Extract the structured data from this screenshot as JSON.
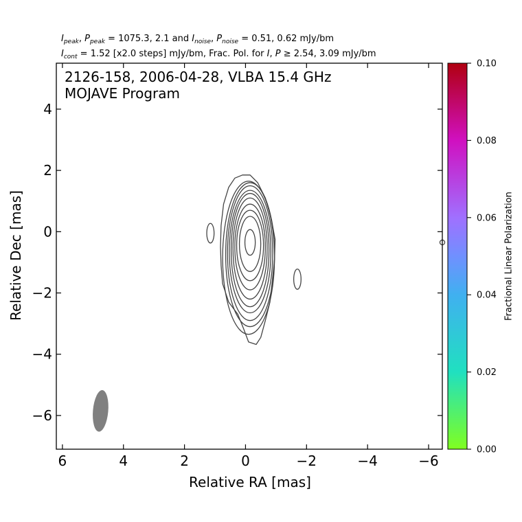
{
  "header": {
    "line1": {
      "i_label": "I",
      "i_sub": "peak",
      "p_label": "P",
      "p_sub": "peak",
      "mid": " = 1075.3, 2.1 and ",
      "in_label": "I",
      "in_sub": "noise",
      "pn_label": "P",
      "pn_sub": "noise",
      "tail": " = 0.51, 0.62 mJy/bm"
    },
    "line2": {
      "ic_label": "I",
      "ic_sub": "cont",
      "mid": " = 1.52 [x2.0 steps] mJy/bm, Frac. Pol. for ",
      "i_label": "I",
      "p_label": "P",
      "geq": " ≥ ",
      "tail": "2.54, 3.09 mJy/bm"
    }
  },
  "chart_data": {
    "type": "contour",
    "title_line1": "2126-158, 2006-04-28, VLBA 15.4 GHz",
    "title_line2": "MOJAVE Program",
    "xlabel": "Relative RA [mas]",
    "ylabel": "Relative Dec [mas]",
    "xlim": [
      6.2,
      -6.45
    ],
    "ylim": [
      -7.1,
      5.5
    ],
    "xticks": [
      6,
      4,
      2,
      0,
      -2,
      -4,
      -6
    ],
    "yticks": [
      4,
      2,
      0,
      -2,
      -4,
      -6
    ],
    "xtick_labels": [
      "6",
      "4",
      "2",
      "0",
      "−2",
      "−4",
      "−6"
    ],
    "ytick_labels": [
      "4",
      "2",
      "0",
      "−2",
      "−4",
      "−6"
    ],
    "grid": false,
    "contour_color": "#444444",
    "core_center": [
      -0.15,
      -0.35
    ],
    "contours": [
      {
        "center": [
          -0.15,
          -0.35
        ],
        "ra_half_width": 0.17,
        "dec_half_height": 0.42
      },
      {
        "center": [
          -0.15,
          -0.4
        ],
        "ra_half_width": 0.35,
        "dec_half_height": 0.9
      },
      {
        "center": [
          -0.15,
          -0.45
        ],
        "ra_half_width": 0.44,
        "dec_half_height": 1.15
      },
      {
        "center": [
          -0.15,
          -0.5
        ],
        "ra_half_width": 0.5,
        "dec_half_height": 1.4
      },
      {
        "center": [
          -0.15,
          -0.55
        ],
        "ra_half_width": 0.56,
        "dec_half_height": 1.65
      },
      {
        "center": [
          -0.15,
          -0.6
        ],
        "ra_half_width": 0.62,
        "dec_half_height": 1.85
      },
      {
        "center": [
          -0.15,
          -0.65
        ],
        "ra_half_width": 0.68,
        "dec_half_height": 2.0
      },
      {
        "center": [
          -0.15,
          -0.7
        ],
        "ra_half_width": 0.74,
        "dec_half_height": 2.2
      },
      {
        "center": [
          -0.15,
          -0.75
        ],
        "ra_half_width": 0.8,
        "dec_half_height": 2.35
      },
      {
        "center": [
          -0.1,
          -0.85
        ],
        "ra_half_width": 0.85,
        "dec_half_height": 2.5
      }
    ],
    "outer_contour": [
      [
        0.1,
        1.85
      ],
      [
        -0.15,
        1.85
      ],
      [
        -0.4,
        1.6
      ],
      [
        -0.65,
        1.1
      ],
      [
        -0.85,
        0.4
      ],
      [
        -0.97,
        -0.25
      ],
      [
        -0.95,
        -0.9
      ],
      [
        -0.88,
        -1.6
      ],
      [
        -0.8,
        -2.3
      ],
      [
        -0.65,
        -2.9
      ],
      [
        -0.5,
        -3.45
      ],
      [
        -0.35,
        -3.68
      ],
      [
        -0.1,
        -3.6
      ],
      [
        0.05,
        -3.2
      ],
      [
        0.25,
        -2.7
      ],
      [
        0.55,
        -2.3
      ],
      [
        0.75,
        -1.7
      ],
      [
        0.8,
        -1.1
      ],
      [
        0.82,
        -0.5
      ],
      [
        0.8,
        0.2
      ],
      [
        0.72,
        0.9
      ],
      [
        0.55,
        1.45
      ],
      [
        0.35,
        1.75
      ]
    ],
    "secondary_contours": [
      {
        "center": [
          1.15,
          -0.05
        ],
        "ra_half_width": 0.12,
        "dec_half_height": 0.32
      },
      {
        "center": [
          -1.7,
          -1.55
        ],
        "ra_half_width": 0.12,
        "dec_half_height": 0.33
      },
      {
        "center": [
          -6.45,
          -0.35
        ],
        "ra_half_width": 0.08,
        "dec_half_height": 0.08
      }
    ],
    "beam": {
      "center": [
        4.75,
        -5.85
      ],
      "major_half": 0.68,
      "minor_half": 0.25,
      "angle_deg": 5,
      "color": "#808080"
    },
    "colorbar": {
      "label": "Fractional Linear Polarization",
      "min": 0.0,
      "max": 0.1,
      "ticks": [
        "0.00",
        "0.02",
        "0.04",
        "0.06",
        "0.08",
        "0.10"
      ],
      "stops": [
        {
          "offset": 0.0,
          "color": "#80ff20"
        },
        {
          "offset": 0.2,
          "color": "#20e0c0"
        },
        {
          "offset": 0.4,
          "color": "#40b0f0"
        },
        {
          "offset": 0.5,
          "color": "#7090ff"
        },
        {
          "offset": 0.6,
          "color": "#a070ff"
        },
        {
          "offset": 0.8,
          "color": "#d010c0"
        },
        {
          "offset": 1.0,
          "color": "#b00010"
        }
      ]
    }
  }
}
